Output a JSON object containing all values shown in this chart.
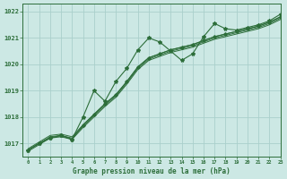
{
  "title": "Graphe pression niveau de la mer (hPa)",
  "background_color": "#cce8e4",
  "grid_color": "#aad0cb",
  "line_color": "#2d6e3a",
  "xlim": [
    -0.5,
    23
  ],
  "ylim": [
    1016.5,
    1022.3
  ],
  "xticks": [
    0,
    1,
    2,
    3,
    4,
    5,
    6,
    7,
    8,
    9,
    10,
    11,
    12,
    13,
    14,
    15,
    16,
    17,
    18,
    19,
    20,
    21,
    22,
    23
  ],
  "yticks": [
    1017,
    1018,
    1019,
    1020,
    1021,
    1022
  ],
  "wiggly_line": [
    1016.75,
    1017.0,
    1017.2,
    1017.3,
    1017.15,
    1018.0,
    1019.0,
    1018.6,
    1019.35,
    1019.85,
    1020.55,
    1021.0,
    1020.85,
    1020.5,
    1020.15,
    1020.4,
    1021.05,
    1021.55,
    1021.35,
    1021.3,
    1021.4,
    1021.5,
    1021.65,
    1021.9
  ],
  "straight_lines": [
    [
      1016.75,
      1017.0,
      1017.25,
      1017.3,
      1017.2,
      1017.65,
      1018.05,
      1018.45,
      1018.8,
      1019.3,
      1019.85,
      1020.2,
      1020.35,
      1020.5,
      1020.6,
      1020.7,
      1020.85,
      1021.0,
      1021.1,
      1021.2,
      1021.3,
      1021.4,
      1021.55,
      1021.75
    ],
    [
      1016.75,
      1017.0,
      1017.25,
      1017.3,
      1017.2,
      1017.65,
      1018.05,
      1018.45,
      1018.8,
      1019.3,
      1019.85,
      1020.2,
      1020.35,
      1020.5,
      1020.6,
      1020.7,
      1020.85,
      1021.0,
      1021.1,
      1021.2,
      1021.3,
      1021.4,
      1021.55,
      1021.75
    ],
    [
      1016.75,
      1017.0,
      1017.25,
      1017.3,
      1017.2,
      1017.65,
      1018.05,
      1018.45,
      1018.8,
      1019.3,
      1019.85,
      1020.2,
      1020.35,
      1020.5,
      1020.6,
      1020.7,
      1020.85,
      1021.0,
      1021.1,
      1021.2,
      1021.3,
      1021.4,
      1021.55,
      1021.75
    ]
  ],
  "straight_offsets": [
    -0.05,
    0.0,
    0.05
  ],
  "marker_line": [
    1016.75,
    1017.0,
    1017.2,
    1017.3,
    1017.15,
    1017.7,
    1018.1,
    1018.5,
    1018.85,
    1019.35,
    1019.9,
    1020.25,
    1020.4,
    1020.55,
    1020.65,
    1020.75,
    1020.9,
    1021.05,
    1021.15,
    1021.25,
    1021.35,
    1021.45,
    1021.6,
    1021.8
  ]
}
